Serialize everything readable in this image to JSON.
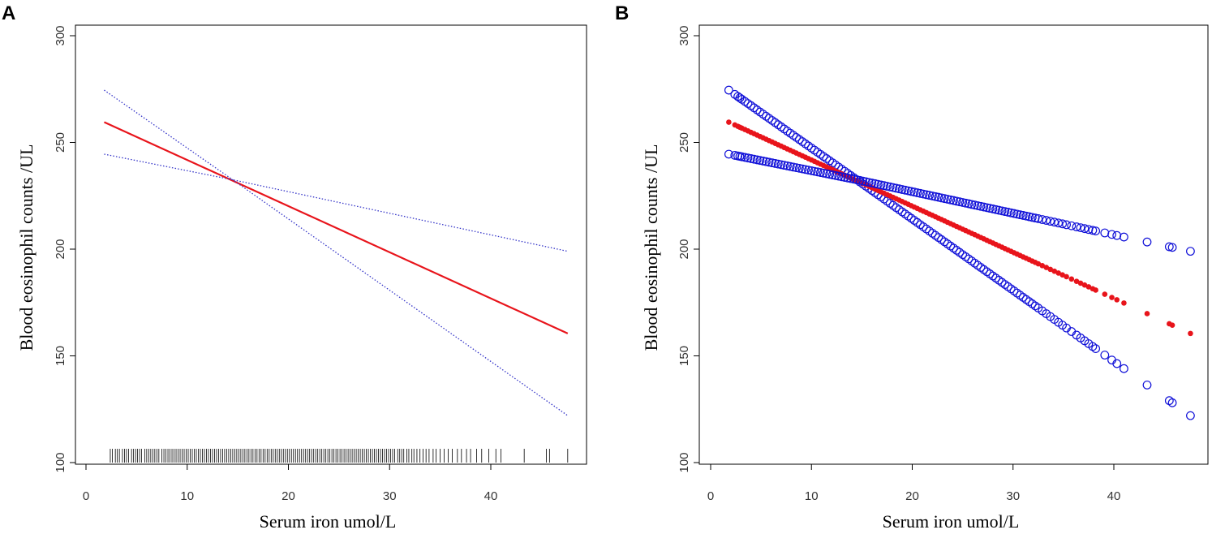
{
  "chart_data": [
    {
      "panel": "A",
      "type": "line",
      "xlabel": "Serum iron umol/L",
      "ylabel": "Blood eosinophil counts /UL",
      "xlim": [
        0,
        48.5
      ],
      "ylim": [
        100,
        300
      ],
      "xticks": [
        0,
        10,
        20,
        30,
        40
      ],
      "yticks": [
        100,
        150,
        200,
        250,
        300
      ],
      "series": [
        {
          "name": "fit",
          "style": "solid",
          "color": "#e8141b",
          "x": [
            1.8,
            47.6
          ],
          "y": [
            259.5,
            160.5
          ]
        },
        {
          "name": "upper-ci",
          "style": "dotted",
          "color": "#3434c8",
          "x": [
            1.8,
            14.5,
            47.6
          ],
          "y": [
            274.5,
            232.5,
            122.0
          ]
        },
        {
          "name": "lower-ci",
          "style": "dotted",
          "color": "#3434c8",
          "x": [
            1.8,
            14.5,
            47.6
          ],
          "y": [
            244.5,
            232.5,
            199.0
          ]
        }
      ],
      "rug_color": "#000000",
      "rug": [
        2.4,
        2.6,
        2.9,
        3.1,
        3.3,
        3.6,
        3.8,
        4.0,
        4.2,
        4.5,
        4.7,
        4.9,
        5.1,
        5.3,
        5.5,
        5.8,
        6.0,
        6.2,
        6.4,
        6.6,
        6.8,
        7.0,
        7.2,
        7.5,
        7.7,
        7.9,
        8.1,
        8.3,
        8.5,
        8.7,
        8.9,
        9.1,
        9.3,
        9.5,
        9.7,
        9.9,
        10.1,
        10.3,
        10.5,
        10.7,
        10.9,
        11.1,
        11.3,
        11.5,
        11.7,
        11.9,
        12.1,
        12.3,
        12.5,
        12.7,
        12.9,
        13.1,
        13.3,
        13.5,
        13.7,
        13.9,
        14.1,
        14.3,
        14.5,
        14.7,
        14.9,
        15.1,
        15.3,
        15.5,
        15.7,
        15.9,
        16.1,
        16.3,
        16.5,
        16.7,
        16.9,
        17.1,
        17.3,
        17.5,
        17.7,
        17.9,
        18.1,
        18.3,
        18.5,
        18.7,
        18.9,
        19.1,
        19.3,
        19.5,
        19.7,
        19.9,
        20.1,
        20.3,
        20.5,
        20.7,
        20.9,
        21.1,
        21.3,
        21.5,
        21.7,
        21.9,
        22.1,
        22.3,
        22.5,
        22.7,
        22.9,
        23.1,
        23.3,
        23.5,
        23.7,
        23.9,
        24.1,
        24.3,
        24.5,
        24.7,
        24.9,
        25.1,
        25.3,
        25.5,
        25.7,
        25.9,
        26.1,
        26.3,
        26.5,
        26.7,
        26.9,
        27.1,
        27.3,
        27.5,
        27.7,
        27.9,
        28.1,
        28.3,
        28.5,
        28.7,
        28.9,
        29.1,
        29.3,
        29.5,
        29.7,
        29.9,
        30.1,
        30.3,
        30.5,
        30.8,
        31.0,
        31.2,
        31.4,
        31.7,
        31.9,
        32.2,
        32.4,
        32.7,
        33.0,
        33.3,
        33.6,
        33.9,
        34.3,
        34.6,
        35.0,
        35.4,
        35.8,
        36.2,
        36.7,
        37.1,
        37.6,
        38.0,
        38.6,
        39.1,
        39.8,
        40.5,
        41.0,
        43.3,
        45.5,
        45.8,
        47.6
      ]
    },
    {
      "panel": "B",
      "type": "scatter",
      "xlabel": "Serum iron umol/L",
      "ylabel": "Blood eosinophil counts /UL",
      "xlim": [
        0,
        48.5
      ],
      "ylim": [
        100,
        300
      ],
      "xticks": [
        0,
        10,
        20,
        30,
        40
      ],
      "yticks": [
        100,
        150,
        200,
        250,
        300
      ],
      "series": [
        {
          "name": "upper-ci",
          "marker": "open-circle",
          "color": "#1010d8",
          "x": [
            1.8,
            2.4,
            2.7,
            2.9,
            3.1,
            3.4,
            3.7,
            4.0,
            4.3,
            4.6,
            4.9,
            5.2,
            5.5,
            5.8,
            6.1,
            6.4,
            6.7,
            7.0,
            7.3,
            7.6,
            7.9,
            8.2,
            8.5,
            8.8,
            9.1,
            9.4,
            9.7,
            10.0,
            10.3,
            10.6,
            10.9,
            11.2,
            11.5,
            11.8,
            12.1,
            12.4,
            12.7,
            13.0,
            13.3,
            13.6,
            13.9,
            14.2,
            14.5,
            14.8,
            15.1,
            15.4,
            15.7,
            16.0,
            16.3,
            16.6,
            16.9,
            17.2,
            17.5,
            17.8,
            18.1,
            18.4,
            18.7,
            19.0,
            19.3,
            19.6,
            19.9,
            20.2,
            20.5,
            20.8,
            21.1,
            21.4,
            21.7,
            22.0,
            22.3,
            22.6,
            22.9,
            23.2,
            23.5,
            23.8,
            24.1,
            24.4,
            24.7,
            25.0,
            25.3,
            25.6,
            25.9,
            26.2,
            26.5,
            26.8,
            27.1,
            27.4,
            27.7,
            28.0,
            28.3,
            28.6,
            28.9,
            29.2,
            29.5,
            29.8,
            30.1,
            30.4,
            30.7,
            31.0,
            31.3,
            31.6,
            31.9,
            32.2,
            32.5,
            32.9,
            33.3,
            33.7,
            34.1,
            34.5,
            34.9,
            35.3,
            35.8,
            36.3,
            36.7,
            37.1,
            37.5,
            37.9,
            38.2,
            39.1,
            39.8,
            40.3,
            41.0,
            43.3,
            45.5,
            45.8,
            47.6
          ]
        },
        {
          "name": "fit",
          "marker": "filled-circle",
          "color": "#e8141b",
          "x": [
            1.8,
            2.4,
            2.7,
            2.9,
            3.1,
            3.4,
            3.7,
            4.0,
            4.3,
            4.6,
            4.9,
            5.2,
            5.5,
            5.8,
            6.1,
            6.4,
            6.7,
            7.0,
            7.3,
            7.6,
            7.9,
            8.2,
            8.5,
            8.8,
            9.1,
            9.4,
            9.7,
            10.0,
            10.3,
            10.6,
            10.9,
            11.2,
            11.5,
            11.8,
            12.1,
            12.4,
            12.7,
            13.0,
            13.3,
            13.6,
            13.9,
            14.2,
            14.5,
            14.8,
            15.1,
            15.4,
            15.7,
            16.0,
            16.3,
            16.6,
            16.9,
            17.2,
            17.5,
            17.8,
            18.1,
            18.4,
            18.7,
            19.0,
            19.3,
            19.6,
            19.9,
            20.2,
            20.5,
            20.8,
            21.1,
            21.4,
            21.7,
            22.0,
            22.3,
            22.6,
            22.9,
            23.2,
            23.5,
            23.8,
            24.1,
            24.4,
            24.7,
            25.0,
            25.3,
            25.6,
            25.9,
            26.2,
            26.5,
            26.8,
            27.1,
            27.4,
            27.7,
            28.0,
            28.3,
            28.6,
            28.9,
            29.2,
            29.5,
            29.8,
            30.1,
            30.4,
            30.7,
            31.0,
            31.3,
            31.6,
            31.9,
            32.2,
            32.5,
            32.9,
            33.3,
            33.7,
            34.1,
            34.5,
            34.9,
            35.3,
            35.8,
            36.3,
            36.7,
            37.1,
            37.5,
            37.9,
            38.2,
            39.1,
            39.8,
            40.3,
            41.0,
            43.3,
            45.5,
            45.8,
            47.6
          ]
        },
        {
          "name": "lower-ci",
          "marker": "open-circle",
          "color": "#1010d8",
          "x": [
            1.8,
            2.4,
            2.7,
            2.9,
            3.1,
            3.4,
            3.7,
            4.0,
            4.3,
            4.6,
            4.9,
            5.2,
            5.5,
            5.8,
            6.1,
            6.4,
            6.7,
            7.0,
            7.3,
            7.6,
            7.9,
            8.2,
            8.5,
            8.8,
            9.1,
            9.4,
            9.7,
            10.0,
            10.3,
            10.6,
            10.9,
            11.2,
            11.5,
            11.8,
            12.1,
            12.4,
            12.7,
            13.0,
            13.3,
            13.6,
            13.9,
            14.2,
            14.5,
            14.8,
            15.1,
            15.4,
            15.7,
            16.0,
            16.3,
            16.6,
            16.9,
            17.2,
            17.5,
            17.8,
            18.1,
            18.4,
            18.7,
            19.0,
            19.3,
            19.6,
            19.9,
            20.2,
            20.5,
            20.8,
            21.1,
            21.4,
            21.7,
            22.0,
            22.3,
            22.6,
            22.9,
            23.2,
            23.5,
            23.8,
            24.1,
            24.4,
            24.7,
            25.0,
            25.3,
            25.6,
            25.9,
            26.2,
            26.5,
            26.8,
            27.1,
            27.4,
            27.7,
            28.0,
            28.3,
            28.6,
            28.9,
            29.2,
            29.5,
            29.8,
            30.1,
            30.4,
            30.7,
            31.0,
            31.3,
            31.6,
            31.9,
            32.2,
            32.5,
            32.9,
            33.3,
            33.7,
            34.1,
            34.5,
            34.9,
            35.3,
            35.8,
            36.3,
            36.7,
            37.1,
            37.5,
            37.9,
            38.2,
            39.1,
            39.8,
            40.3,
            41.0,
            43.3,
            45.5,
            45.8,
            47.6
          ]
        }
      ],
      "lines": {
        "fit": {
          "x": [
            1.8,
            47.6
          ],
          "y": [
            259.5,
            160.5
          ]
        },
        "upper-ci": {
          "x": [
            1.8,
            14.5,
            47.6
          ],
          "y": [
            274.5,
            232.5,
            122.0
          ]
        },
        "lower-ci": {
          "x": [
            1.8,
            14.5,
            47.6
          ],
          "y": [
            244.5,
            232.5,
            199.0
          ]
        }
      }
    }
  ]
}
